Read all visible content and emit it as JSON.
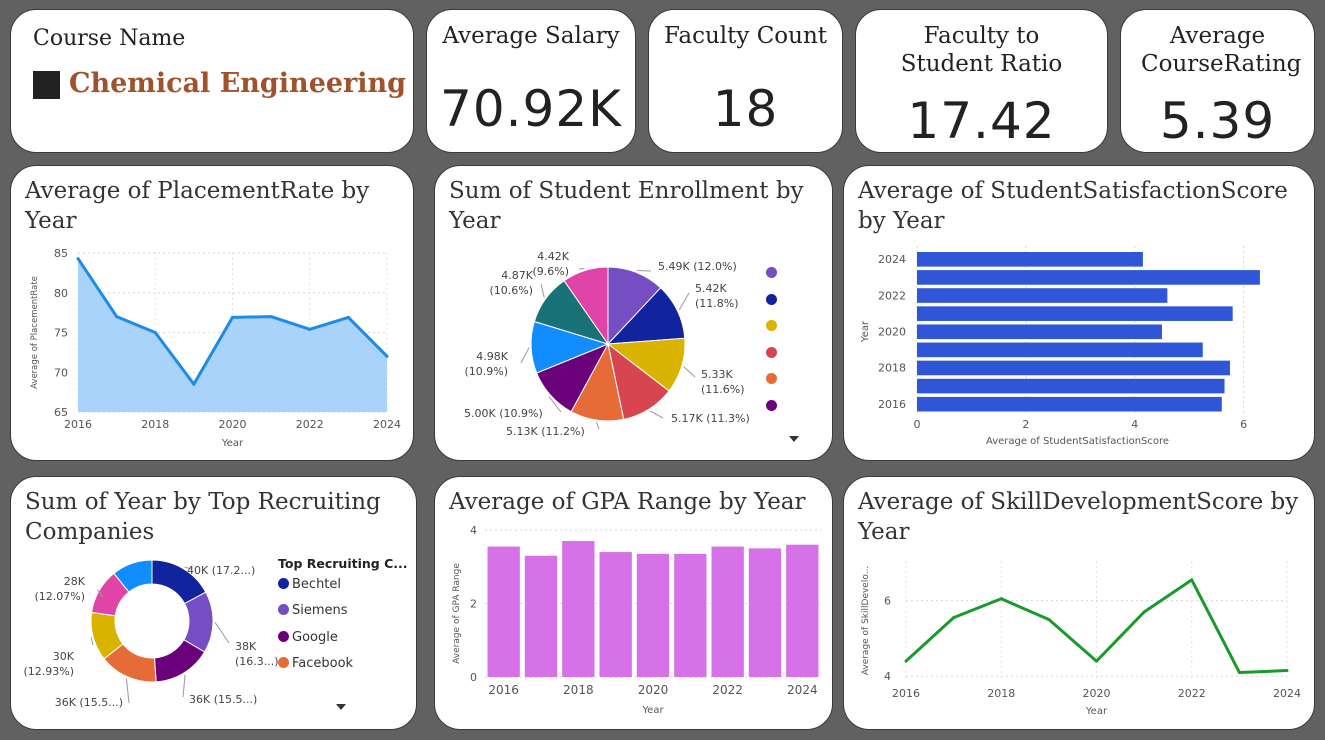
{
  "slicer": {
    "title": "Course Name",
    "value": "Chemical Engineering"
  },
  "kpis": [
    {
      "label": "Average Salary",
      "value": "70.92K"
    },
    {
      "label": "Faculty Count",
      "value": "18"
    },
    {
      "label": "Faculty to Student Ratio",
      "value": "17.42"
    },
    {
      "label": "Average CourseRating",
      "value": "5.39"
    }
  ],
  "chart_data": [
    {
      "id": "placement",
      "type": "area",
      "title": "Average of PlacementRate by Year",
      "xlabel": "Year",
      "ylabel": "Average of PlacementRate",
      "x": [
        2016,
        2017,
        2018,
        2019,
        2020,
        2021,
        2022,
        2023,
        2024
      ],
      "values": [
        84.3,
        77.0,
        75.0,
        68.5,
        76.9,
        77.0,
        75.4,
        76.9,
        72.0
      ],
      "ylim": [
        65,
        85
      ],
      "yticks": [
        65,
        70,
        75,
        80,
        85
      ],
      "xticks": [
        2016,
        2018,
        2020,
        2022,
        2024
      ],
      "color": "#1e8be8",
      "fill": "#a9d3fb"
    },
    {
      "id": "enrollment",
      "type": "pie",
      "title": "Sum of Student Enrollment by Year",
      "slices": [
        {
          "value": 5.49,
          "label1": "5.49K (12.0%)",
          "label2": "",
          "color": "#744ec2"
        },
        {
          "value": 5.42,
          "label1": "5.42K",
          "label2": "(11.8%)",
          "color": "#12239e"
        },
        {
          "value": 5.33,
          "label1": "5.33K",
          "label2": "(11.6%)",
          "color": "#d9b300"
        },
        {
          "value": 5.17,
          "label1": "5.17K (11.3%)",
          "label2": "",
          "color": "#d64550"
        },
        {
          "value": 5.13,
          "label1": "5.13K (11.2%)",
          "label2": "",
          "color": "#e66c37"
        },
        {
          "value": 5.0,
          "label1": "5.00K (10.9%)",
          "label2": "",
          "color": "#6b007b"
        },
        {
          "value": 4.98,
          "label1": "4.98K",
          "label2": "(10.9%)",
          "color": "#118dff"
        },
        {
          "value": 4.87,
          "label1": "4.87K",
          "label2": "(10.6%)",
          "color": "#197278"
        },
        {
          "value": 4.42,
          "label1": "4.42K",
          "label2": "(9.6%)",
          "color": "#e044a7"
        }
      ]
    },
    {
      "id": "satisfaction",
      "type": "bar",
      "orientation": "horizontal",
      "title": "Average of StudentSatisfactionScore by Year",
      "xlabel": "Average of StudentSatisfactionScore",
      "ylabel": "Year",
      "categories": [
        2024,
        2023,
        2022,
        2021,
        2020,
        2019,
        2018,
        2017,
        2016
      ],
      "ytick_labels": [
        "2024",
        "",
        "2022",
        "",
        "2020",
        "",
        "2018",
        "",
        "2016"
      ],
      "values": [
        4.15,
        6.3,
        4.6,
        5.8,
        4.5,
        5.25,
        5.75,
        5.65,
        5.6
      ],
      "xlim": [
        0,
        7
      ],
      "xticks": [
        0,
        2,
        4,
        6
      ],
      "color": "#2e56d6"
    },
    {
      "id": "recruiters",
      "type": "pie",
      "title": "Sum of Year by Top Recruiting Companies",
      "legend_title": "Top Recruiting C...",
      "legend": [
        {
          "name": "Bechtel",
          "color": "#12239e"
        },
        {
          "name": "Siemens",
          "color": "#744ec2"
        },
        {
          "name": "Google",
          "color": "#6b007b"
        },
        {
          "name": "Facebook",
          "color": "#e66c37"
        }
      ],
      "slices": [
        {
          "value": 40,
          "label1": "40K (17.2...)",
          "label2": "",
          "color": "#12239e"
        },
        {
          "value": 38,
          "label1": "38K",
          "label2": "(16.3...)",
          "color": "#744ec2"
        },
        {
          "value": 36,
          "label1": "36K (15.5...)",
          "label2": "",
          "color": "#6b007b"
        },
        {
          "value": 36,
          "label1": "36K (15.5...)",
          "label2": "",
          "color": "#e66c37"
        },
        {
          "value": 30,
          "label1": "30K",
          "label2": "(12.93%)",
          "color": "#d9b300"
        },
        {
          "value": 28,
          "label1": "28K",
          "label2": "(12.07%)",
          "color": "#e044a7"
        },
        {
          "value": 25,
          "label1": "",
          "label2": "",
          "color": "#118dff"
        }
      ]
    },
    {
      "id": "gpa",
      "type": "bar",
      "title": "Average of GPA Range by Year",
      "xlabel": "Year",
      "ylabel": "Average of GPA Range",
      "categories": [
        2016,
        2017,
        2018,
        2019,
        2020,
        2021,
        2022,
        2023,
        2024
      ],
      "values": [
        3.55,
        3.3,
        3.7,
        3.4,
        3.35,
        3.35,
        3.55,
        3.5,
        3.6
      ],
      "ylim": [
        0,
        4
      ],
      "yticks": [
        0,
        2,
        4
      ],
      "xticks": [
        2016,
        2018,
        2020,
        2022,
        2024
      ],
      "color": "#d672e8"
    },
    {
      "id": "skill",
      "type": "line",
      "title": "Average of SkillDevelopmentScore by Year",
      "xlabel": "Year",
      "ylabel": "Average of SkillDevelo...",
      "x": [
        2016,
        2017,
        2018,
        2019,
        2020,
        2021,
        2022,
        2023,
        2024
      ],
      "values": [
        4.4,
        5.55,
        6.05,
        5.5,
        4.4,
        5.7,
        6.55,
        4.1,
        4.15
      ],
      "ylim": [
        3.9,
        7.05
      ],
      "yticks": [
        4,
        6
      ],
      "xticks": [
        2016,
        2018,
        2020,
        2022,
        2024
      ],
      "color": "#1a9a2a"
    }
  ]
}
